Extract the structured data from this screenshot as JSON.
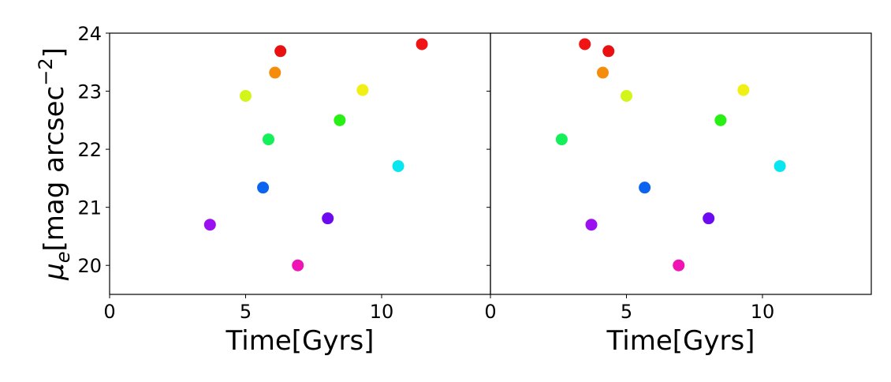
{
  "chart_data": [
    {
      "type": "scatter",
      "xlabel": "Time[Gyrs]",
      "ylabel": [
        "μ",
        "e",
        "[mag arcsec",
        "−2",
        "]"
      ],
      "xlim": [
        0,
        14
      ],
      "ylim": [
        19.5,
        24
      ],
      "xticks": [
        0,
        5,
        10
      ],
      "yticks": [
        20,
        21,
        22,
        23,
        24
      ],
      "x": [
        3.69,
        5.0,
        5.64,
        5.84,
        6.08,
        6.28,
        6.92,
        8.02,
        8.46,
        9.3,
        10.61,
        11.48
      ],
      "values": [
        20.7,
        22.92,
        21.34,
        22.17,
        23.32,
        23.69,
        20.0,
        20.81,
        22.5,
        23.02,
        21.71,
        23.81
      ],
      "colors": [
        "#9b10f0",
        "#d4f51a",
        "#0a64f0",
        "#14f05a",
        "#f58c0a",
        "#e81010",
        "#f014b4",
        "#6e0af0",
        "#28f014",
        "#f0f014",
        "#0ae6f0",
        "#f01414"
      ]
    },
    {
      "type": "scatter",
      "xlabel": "Time[Gyrs]",
      "xlim": [
        0,
        14
      ],
      "ylim": [
        19.5,
        24
      ],
      "xticks": [
        0,
        5,
        10
      ],
      "yticks": [
        20,
        21,
        22,
        23,
        24
      ],
      "x": [
        3.47,
        4.34,
        4.13,
        5.0,
        2.62,
        9.3,
        8.46,
        10.64,
        5.67,
        3.71,
        8.02,
        6.92
      ],
      "values": [
        23.81,
        23.69,
        23.32,
        22.92,
        22.17,
        23.02,
        22.5,
        21.71,
        21.34,
        20.7,
        20.81,
        20.0
      ],
      "colors": [
        "#f01414",
        "#e81010",
        "#f58c0a",
        "#d4f51a",
        "#14f05a",
        "#f0f014",
        "#28f014",
        "#0ae6f0",
        "#0a64f0",
        "#9b10f0",
        "#6e0af0",
        "#f014b4"
      ]
    }
  ]
}
